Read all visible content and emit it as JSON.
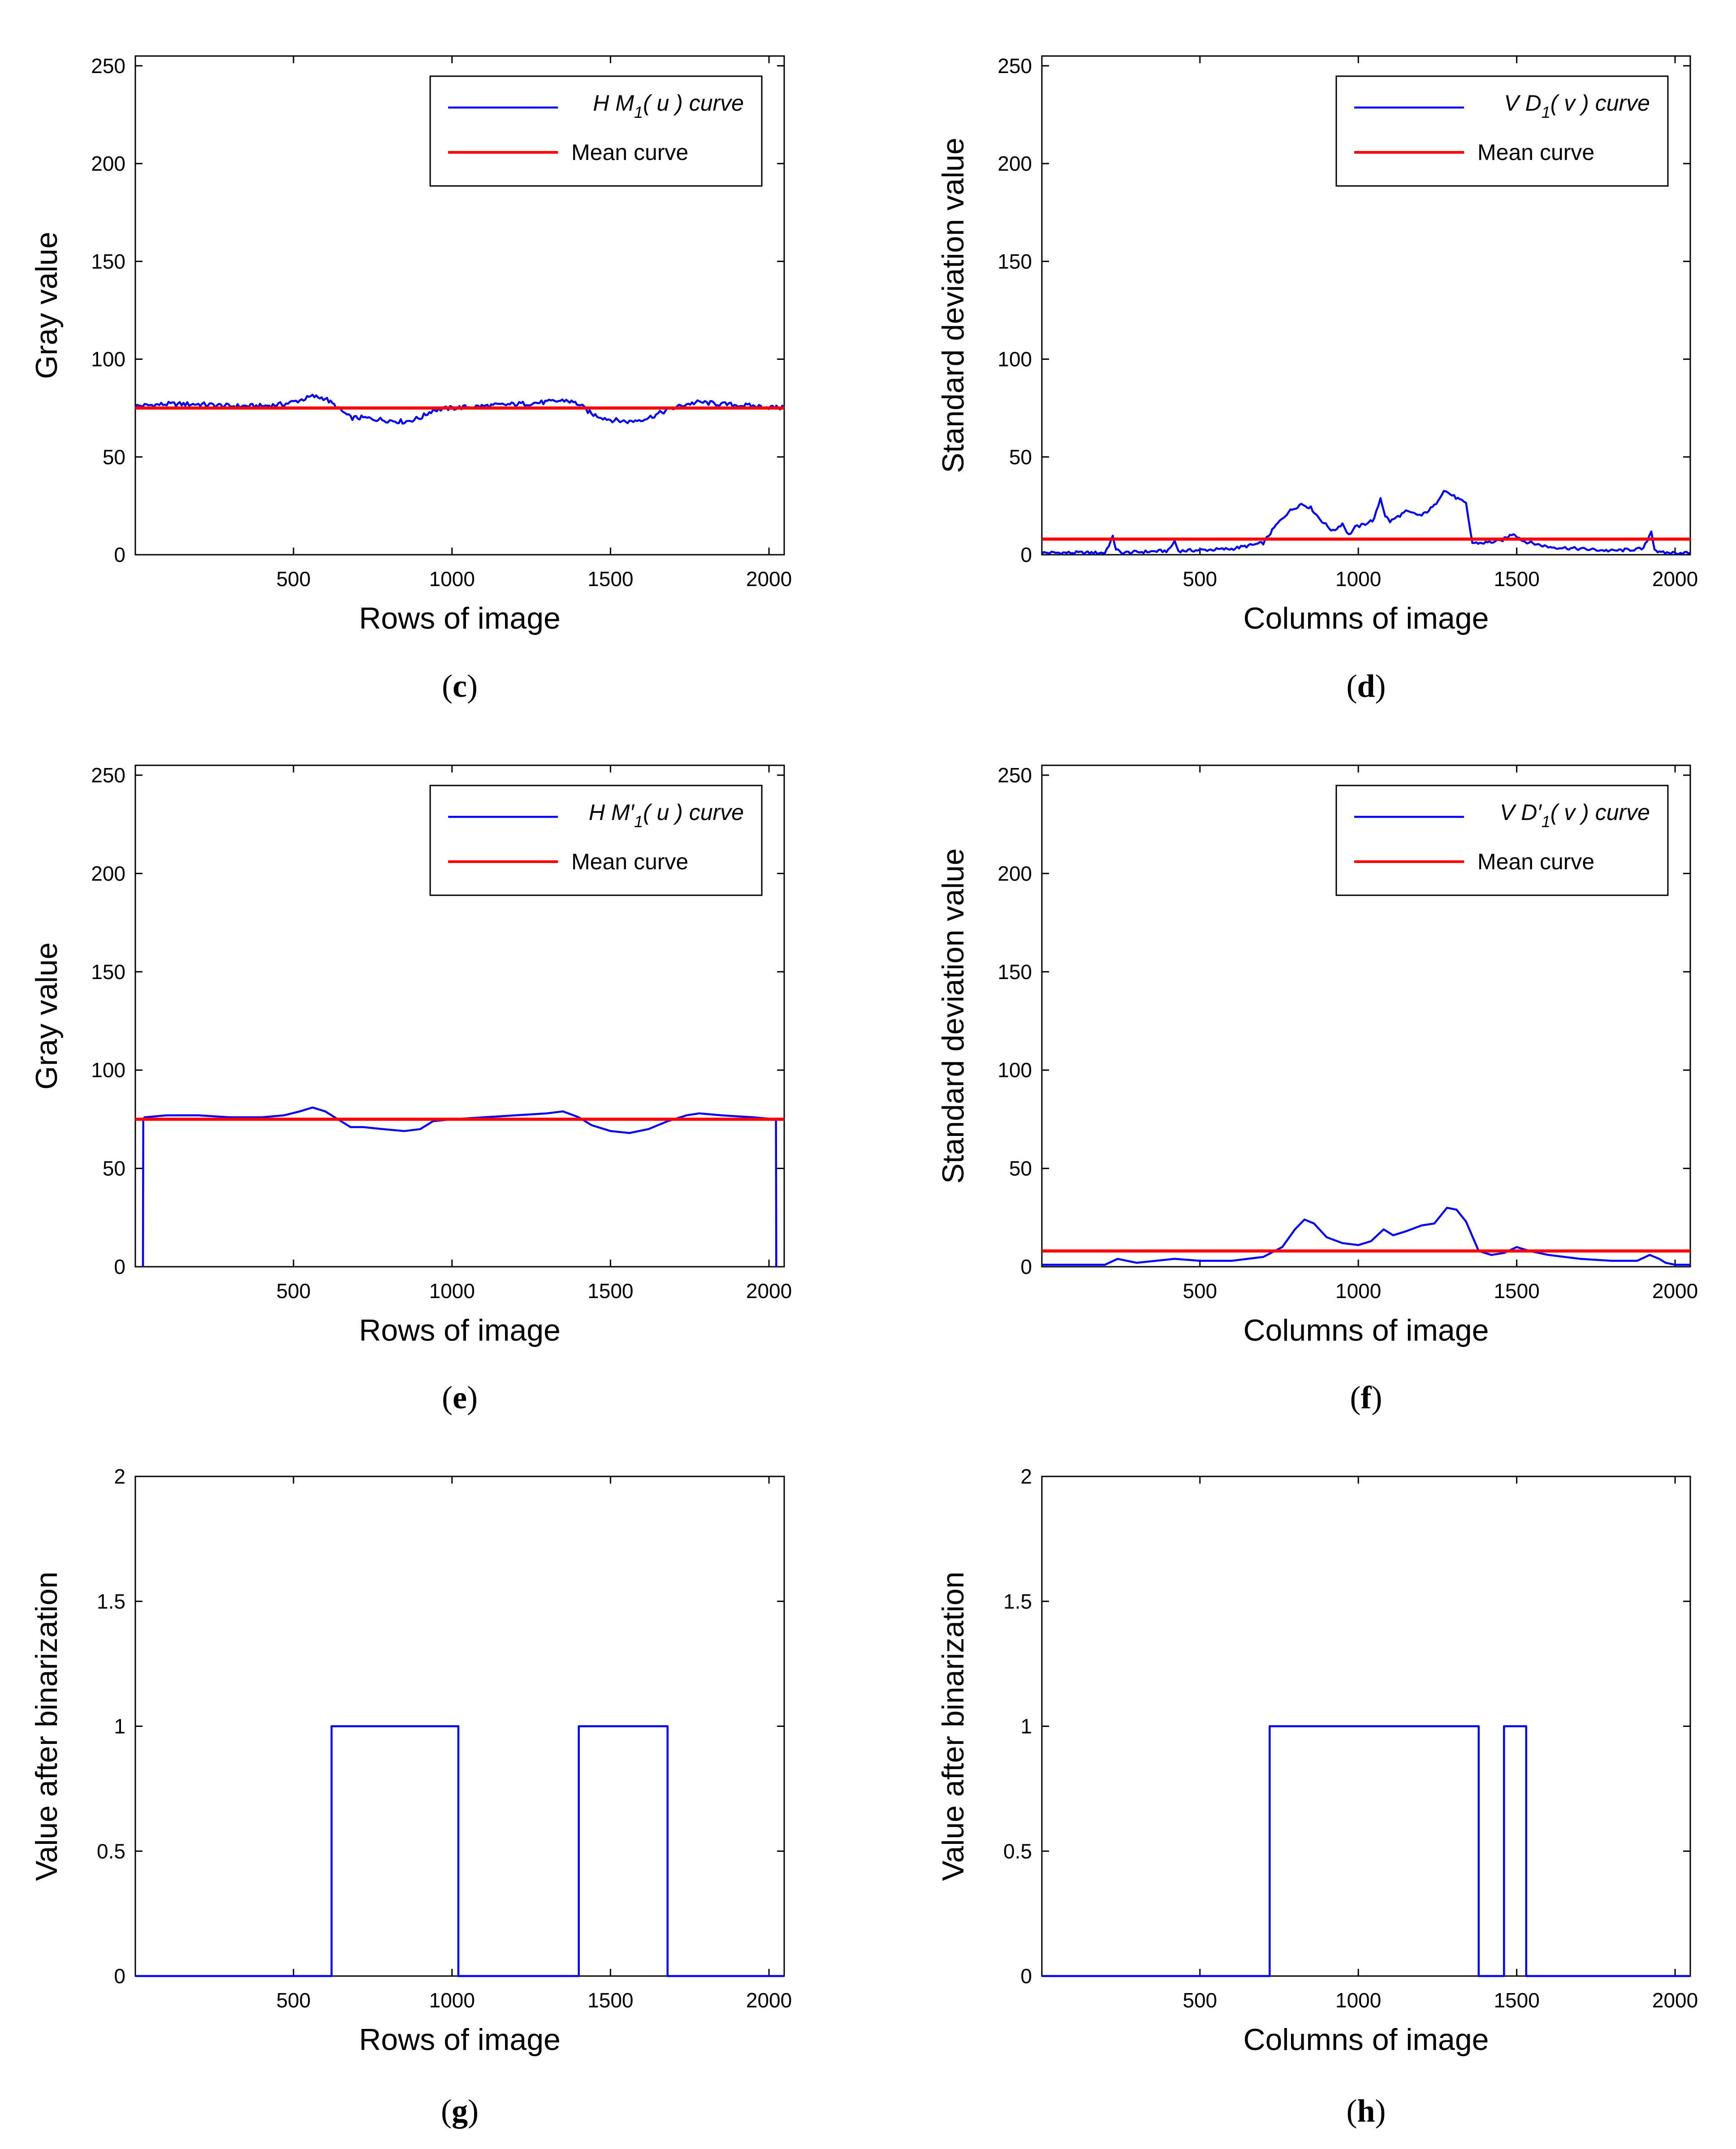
{
  "figure": {
    "description_labels": [
      "(c)",
      "(d)",
      "(e)",
      "(f)",
      "(g)",
      "(h)"
    ]
  },
  "chart_data": [
    {
      "id": "c",
      "caption_letter": "c",
      "type": "line",
      "ylabel": "Gray value",
      "xlabel": "Rows of image",
      "xlim": [
        1,
        2048
      ],
      "ylim": [
        0,
        255
      ],
      "xticks": [
        500,
        1000,
        1500,
        2000
      ],
      "yticks": [
        0,
        50,
        100,
        150,
        200,
        250
      ],
      "legend": {
        "position": "top-right",
        "entries": [
          {
            "label_prefix": "H M",
            "subscript": "1",
            "label_suffix": "( u ) curve",
            "color": "#0000ff"
          },
          {
            "label": "Mean curve",
            "color": "#ff0000"
          }
        ]
      },
      "series": [
        {
          "name": "HM1(u) curve",
          "color": "#0000ff",
          "noise": 1.2,
          "x": [
            1,
            100,
            200,
            300,
            400,
            470,
            520,
            560,
            600,
            640,
            680,
            720,
            780,
            850,
            900,
            940,
            1000,
            1100,
            1200,
            1300,
            1360,
            1400,
            1440,
            1500,
            1560,
            1620,
            1680,
            1740,
            1780,
            1850,
            1950,
            2048
          ],
          "y": [
            76,
            77,
            77,
            76,
            76,
            77,
            79,
            81,
            80,
            75,
            70,
            70,
            69,
            68,
            70,
            74,
            75,
            76,
            77,
            78,
            79,
            77,
            72,
            69,
            68,
            70,
            74,
            77,
            78,
            77,
            76,
            75
          ]
        },
        {
          "name": "Mean curve",
          "color": "#ff0000",
          "x": [
            1,
            2048
          ],
          "y": [
            75,
            75
          ]
        }
      ]
    },
    {
      "id": "d",
      "caption_letter": "d",
      "type": "line",
      "ylabel": "Standard deviation value",
      "xlabel": "Columns of image",
      "xlim": [
        1,
        2048
      ],
      "ylim": [
        0,
        255
      ],
      "xticks": [
        500,
        1000,
        1500,
        2000
      ],
      "yticks": [
        0,
        50,
        100,
        150,
        200,
        250
      ],
      "legend": {
        "position": "top-right",
        "entries": [
          {
            "label_prefix": "V D",
            "subscript": "1",
            "label_suffix": "( v ) curve",
            "color": "#0000ff"
          },
          {
            "label": "Mean curve",
            "color": "#ff0000"
          }
        ]
      },
      "series": [
        {
          "name": "VD1(v) curve",
          "color": "#0000ff",
          "noise": 0.8,
          "x": [
            1,
            200,
            225,
            235,
            250,
            400,
            420,
            432,
            445,
            600,
            700,
            740,
            780,
            820,
            850,
            880,
            920,
            950,
            970,
            990,
            1010,
            1050,
            1070,
            1085,
            1100,
            1150,
            1200,
            1240,
            1270,
            1290,
            1320,
            1340,
            1360,
            1390,
            1450,
            1490,
            1520,
            1600,
            1700,
            1800,
            1900,
            1925,
            1935,
            1950,
            2048
          ],
          "y": [
            1,
            1,
            9,
            3,
            1,
            2,
            7,
            2,
            2,
            3,
            6,
            15,
            22,
            26,
            24,
            18,
            12,
            16,
            10,
            14,
            15,
            18,
            29,
            20,
            17,
            22,
            20,
            25,
            33,
            31,
            28,
            26,
            6,
            6,
            7,
            11,
            7,
            4,
            3,
            2,
            3,
            12,
            3,
            1,
            1
          ]
        },
        {
          "name": "Mean curve",
          "color": "#ff0000",
          "x": [
            1,
            2048
          ],
          "y": [
            8,
            8
          ]
        }
      ]
    },
    {
      "id": "e",
      "caption_letter": "e",
      "type": "line",
      "ylabel": "Gray value",
      "xlabel": "Rows of image",
      "xlim": [
        1,
        2048
      ],
      "ylim": [
        0,
        255
      ],
      "xticks": [
        500,
        1000,
        1500,
        2000
      ],
      "yticks": [
        0,
        50,
        100,
        150,
        200,
        250
      ],
      "legend": {
        "position": "top-right",
        "entries": [
          {
            "label_prefix": "H M′",
            "subscript": "1",
            "label_suffix": "( u ) curve",
            "color": "#0000ff"
          },
          {
            "label": "Mean curve",
            "color": "#ff0000"
          }
        ]
      },
      "series": [
        {
          "name": "HM'1(u) curve",
          "color": "#0000ff",
          "noise": 0,
          "x": [
            25,
            26,
            30,
            100,
            200,
            300,
            400,
            470,
            520,
            560,
            600,
            640,
            680,
            720,
            780,
            850,
            900,
            940,
            1000,
            1100,
            1200,
            1300,
            1350,
            1400,
            1440,
            1500,
            1560,
            1620,
            1680,
            1740,
            1780,
            1850,
            1950,
            2020,
            2022,
            2023
          ],
          "y": [
            0,
            75,
            76,
            77,
            77,
            76,
            76,
            77,
            79,
            81,
            79,
            75,
            71,
            71,
            70,
            69,
            70,
            74,
            75,
            76,
            77,
            78,
            79,
            76,
            72,
            69,
            68,
            70,
            74,
            77,
            78,
            77,
            76,
            75,
            75,
            0
          ]
        },
        {
          "name": "Mean curve",
          "color": "#ff0000",
          "x": [
            1,
            2048
          ],
          "y": [
            75,
            75
          ]
        }
      ]
    },
    {
      "id": "f",
      "caption_letter": "f",
      "type": "line",
      "ylabel": "Standard deviation value",
      "xlabel": "Columns of image",
      "xlim": [
        1,
        2048
      ],
      "ylim": [
        0,
        255
      ],
      "xticks": [
        500,
        1000,
        1500,
        2000
      ],
      "yticks": [
        0,
        50,
        100,
        150,
        200,
        250
      ],
      "legend": {
        "position": "top-right",
        "entries": [
          {
            "label_prefix": "V D′",
            "subscript": "1",
            "label_suffix": "( v ) curve",
            "color": "#0000ff"
          },
          {
            "label": "Mean curve",
            "color": "#ff0000"
          }
        ]
      },
      "series": [
        {
          "name": "VD'1(v) curve",
          "color": "#0000ff",
          "noise": 0,
          "x": [
            1,
            200,
            240,
            300,
            420,
            500,
            600,
            700,
            760,
            800,
            830,
            860,
            900,
            950,
            1000,
            1040,
            1080,
            1110,
            1150,
            1200,
            1240,
            1280,
            1310,
            1340,
            1380,
            1420,
            1460,
            1500,
            1540,
            1600,
            1700,
            1800,
            1880,
            1920,
            1950,
            1970,
            2000,
            2048
          ],
          "y": [
            1,
            1,
            4,
            2,
            4,
            3,
            3,
            5,
            10,
            19,
            24,
            22,
            15,
            12,
            11,
            13,
            19,
            16,
            18,
            21,
            22,
            30,
            29,
            23,
            8,
            6,
            7,
            10,
            8,
            6,
            4,
            3,
            3,
            6,
            4,
            2,
            1,
            1
          ]
        },
        {
          "name": "Mean curve",
          "color": "#ff0000",
          "x": [
            1,
            2048
          ],
          "y": [
            8,
            8
          ]
        }
      ]
    },
    {
      "id": "g",
      "caption_letter": "g",
      "type": "line",
      "ylabel": "Value after binarization",
      "xlabel": "Rows of image",
      "xlim": [
        1,
        2048
      ],
      "ylim": [
        0,
        2
      ],
      "xticks": [
        500,
        1000,
        1500,
        2000
      ],
      "yticks": [
        0,
        0.5,
        1,
        1.5,
        2
      ],
      "legend": null,
      "series": [
        {
          "name": "binarized",
          "color": "#0000ff",
          "noise": 0,
          "x": [
            1,
            620,
            620,
            1020,
            1020,
            1400,
            1400,
            1680,
            1680,
            2048
          ],
          "y": [
            0,
            0,
            1,
            1,
            0,
            0,
            1,
            1,
            0,
            0
          ]
        }
      ]
    },
    {
      "id": "h",
      "caption_letter": "h",
      "type": "line",
      "ylabel": "Value after binarization",
      "xlabel": "Columns of image",
      "xlim": [
        1,
        2048
      ],
      "ylim": [
        0,
        2
      ],
      "xticks": [
        500,
        1000,
        1500,
        2000
      ],
      "yticks": [
        0,
        0.5,
        1,
        1.5,
        2
      ],
      "legend": null,
      "series": [
        {
          "name": "binarized",
          "color": "#0000ff",
          "noise": 0,
          "x": [
            1,
            720,
            720,
            1380,
            1380,
            1460,
            1460,
            1530,
            1530,
            2048
          ],
          "y": [
            0,
            0,
            1,
            1,
            0,
            0,
            1,
            1,
            0,
            0
          ]
        }
      ]
    }
  ]
}
